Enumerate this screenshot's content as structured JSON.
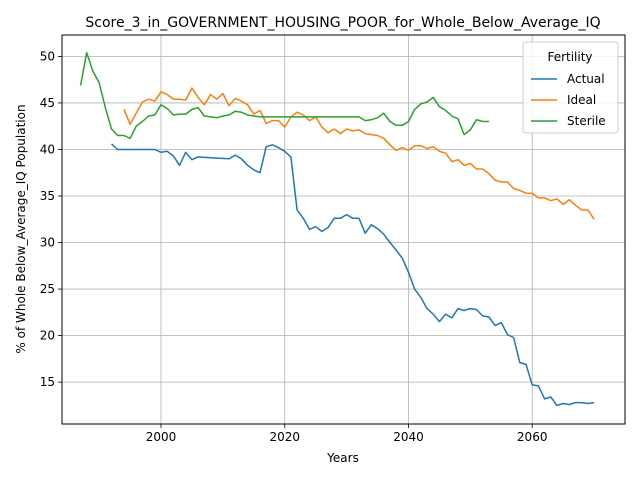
{
  "chart_data": {
    "type": "line",
    "title": "Score_3_in_GOVERNMENT_HOUSING_POOR_for_Whole_Below_Average_IQ",
    "xlabel": "Years",
    "ylabel": "% of Whole Below_Average_IQ Population",
    "xlim": [
      1984,
      2075
    ],
    "ylim": [
      10.5,
      52.3
    ],
    "xticks": [
      2000,
      2020,
      2040,
      2060
    ],
    "yticks": [
      15,
      20,
      25,
      30,
      35,
      40,
      45,
      50
    ],
    "grid": true,
    "legend": {
      "title": "Fertility",
      "position": "upper-right"
    },
    "series": [
      {
        "name": "Actual",
        "color": "#1f77b4",
        "points": [
          [
            1992,
            40.6
          ],
          [
            1993,
            40.0
          ],
          [
            1995,
            40.0
          ],
          [
            1997,
            40.0
          ],
          [
            1999,
            40.0
          ],
          [
            2000,
            39.7
          ],
          [
            2001,
            39.8
          ],
          [
            2002,
            39.3
          ],
          [
            2003,
            38.3
          ],
          [
            2004,
            39.7
          ],
          [
            2005,
            38.9
          ],
          [
            2006,
            39.2
          ],
          [
            2008,
            39.1
          ],
          [
            2011,
            39.0
          ],
          [
            2012,
            39.4
          ],
          [
            2013,
            39.0
          ],
          [
            2014,
            38.3
          ],
          [
            2015,
            37.8
          ],
          [
            2016,
            37.5
          ],
          [
            2017,
            40.3
          ],
          [
            2018,
            40.5
          ],
          [
            2019,
            40.2
          ],
          [
            2020,
            39.8
          ],
          [
            2021,
            39.2
          ],
          [
            2022,
            33.5
          ],
          [
            2023,
            32.6
          ],
          [
            2024,
            31.4
          ],
          [
            2025,
            31.7
          ],
          [
            2026,
            31.2
          ],
          [
            2027,
            31.6
          ],
          [
            2028,
            32.6
          ],
          [
            2029,
            32.6
          ],
          [
            2030,
            33.0
          ],
          [
            2031,
            32.6
          ],
          [
            2032,
            32.6
          ],
          [
            2033,
            31.0
          ],
          [
            2034,
            31.9
          ],
          [
            2035,
            31.5
          ],
          [
            2036,
            30.9
          ],
          [
            2037,
            30.0
          ],
          [
            2038,
            29.2
          ],
          [
            2039,
            28.3
          ],
          [
            2040,
            26.8
          ],
          [
            2041,
            25.0
          ],
          [
            2042,
            24.1
          ],
          [
            2043,
            22.9
          ],
          [
            2044,
            22.3
          ],
          [
            2045,
            21.5
          ],
          [
            2046,
            22.3
          ],
          [
            2047,
            21.9
          ],
          [
            2048,
            22.9
          ],
          [
            2049,
            22.7
          ],
          [
            2050,
            22.9
          ],
          [
            2051,
            22.8
          ],
          [
            2052,
            22.1
          ],
          [
            2053,
            22.0
          ],
          [
            2054,
            21.1
          ],
          [
            2055,
            21.4
          ],
          [
            2056,
            20.1
          ],
          [
            2057,
            19.8
          ],
          [
            2058,
            17.1
          ],
          [
            2059,
            16.9
          ],
          [
            2060,
            14.7
          ],
          [
            2061,
            14.6
          ],
          [
            2062,
            13.2
          ],
          [
            2063,
            13.4
          ],
          [
            2064,
            12.5
          ],
          [
            2065,
            12.7
          ],
          [
            2066,
            12.6
          ],
          [
            2067,
            12.8
          ],
          [
            2068,
            12.8
          ],
          [
            2069,
            12.7
          ],
          [
            2070,
            12.8
          ]
        ]
      },
      {
        "name": "Ideal",
        "color": "#ff7f0e",
        "points": [
          [
            1994,
            44.3
          ],
          [
            1995,
            42.7
          ],
          [
            1996,
            43.9
          ],
          [
            1997,
            45.1
          ],
          [
            1998,
            45.4
          ],
          [
            1999,
            45.2
          ],
          [
            2000,
            46.2
          ],
          [
            2001,
            45.9
          ],
          [
            2002,
            45.4
          ],
          [
            2003,
            45.4
          ],
          [
            2004,
            45.3
          ],
          [
            2005,
            46.6
          ],
          [
            2006,
            45.6
          ],
          [
            2007,
            44.8
          ],
          [
            2008,
            45.9
          ],
          [
            2009,
            45.4
          ],
          [
            2010,
            46.0
          ],
          [
            2011,
            44.7
          ],
          [
            2012,
            45.5
          ],
          [
            2013,
            45.2
          ],
          [
            2014,
            44.8
          ],
          [
            2015,
            43.8
          ],
          [
            2016,
            44.2
          ],
          [
            2017,
            42.8
          ],
          [
            2018,
            43.1
          ],
          [
            2019,
            43.1
          ],
          [
            2020,
            42.4
          ],
          [
            2021,
            43.5
          ],
          [
            2022,
            44.0
          ],
          [
            2023,
            43.7
          ],
          [
            2024,
            43.1
          ],
          [
            2025,
            43.5
          ],
          [
            2026,
            42.4
          ],
          [
            2027,
            41.8
          ],
          [
            2028,
            42.2
          ],
          [
            2029,
            41.7
          ],
          [
            2030,
            42.2
          ],
          [
            2031,
            42.0
          ],
          [
            2032,
            42.1
          ],
          [
            2033,
            41.7
          ],
          [
            2034,
            41.6
          ],
          [
            2035,
            41.5
          ],
          [
            2036,
            41.2
          ],
          [
            2037,
            40.5
          ],
          [
            2038,
            39.9
          ],
          [
            2039,
            40.2
          ],
          [
            2040,
            39.9
          ],
          [
            2041,
            40.4
          ],
          [
            2042,
            40.4
          ],
          [
            2043,
            40.1
          ],
          [
            2044,
            40.3
          ],
          [
            2045,
            39.8
          ],
          [
            2046,
            39.6
          ],
          [
            2047,
            38.7
          ],
          [
            2048,
            38.9
          ],
          [
            2049,
            38.3
          ],
          [
            2050,
            38.5
          ],
          [
            2051,
            37.9
          ],
          [
            2052,
            37.9
          ],
          [
            2053,
            37.4
          ],
          [
            2054,
            36.7
          ],
          [
            2055,
            36.5
          ],
          [
            2056,
            36.5
          ],
          [
            2057,
            35.8
          ],
          [
            2058,
            35.6
          ],
          [
            2059,
            35.3
          ],
          [
            2060,
            35.3
          ],
          [
            2061,
            34.8
          ],
          [
            2062,
            34.8
          ],
          [
            2063,
            34.5
          ],
          [
            2064,
            34.7
          ],
          [
            2065,
            34.1
          ],
          [
            2066,
            34.6
          ],
          [
            2067,
            34.0
          ],
          [
            2068,
            33.5
          ],
          [
            2069,
            33.5
          ],
          [
            2070,
            32.5
          ]
        ]
      },
      {
        "name": "Sterile",
        "color": "#2ca02c",
        "points": [
          [
            1987,
            46.9
          ],
          [
            1988,
            50.4
          ],
          [
            1989,
            48.4
          ],
          [
            1990,
            47.2
          ],
          [
            1991,
            44.5
          ],
          [
            1992,
            42.2
          ],
          [
            1993,
            41.5
          ],
          [
            1994,
            41.5
          ],
          [
            1995,
            41.2
          ],
          [
            1996,
            42.5
          ],
          [
            1997,
            43.0
          ],
          [
            1998,
            43.6
          ],
          [
            1999,
            43.7
          ],
          [
            2000,
            44.8
          ],
          [
            2001,
            44.4
          ],
          [
            2002,
            43.7
          ],
          [
            2003,
            43.8
          ],
          [
            2004,
            43.8
          ],
          [
            2005,
            44.3
          ],
          [
            2006,
            44.5
          ],
          [
            2007,
            43.6
          ],
          [
            2008,
            43.5
          ],
          [
            2009,
            43.4
          ],
          [
            2010,
            43.6
          ],
          [
            2011,
            43.7
          ],
          [
            2012,
            44.1
          ],
          [
            2013,
            44.0
          ],
          [
            2014,
            43.7
          ],
          [
            2015,
            43.6
          ],
          [
            2016,
            43.5
          ],
          [
            2020,
            43.5
          ],
          [
            2025,
            43.5
          ],
          [
            2032,
            43.5
          ],
          [
            2033,
            43.1
          ],
          [
            2034,
            43.2
          ],
          [
            2035,
            43.4
          ],
          [
            2036,
            43.9
          ],
          [
            2037,
            43.0
          ],
          [
            2038,
            42.6
          ],
          [
            2039,
            42.6
          ],
          [
            2040,
            43.0
          ],
          [
            2041,
            44.3
          ],
          [
            2042,
            44.9
          ],
          [
            2043,
            45.1
          ],
          [
            2044,
            45.6
          ],
          [
            2045,
            44.6
          ],
          [
            2046,
            44.2
          ],
          [
            2047,
            43.6
          ],
          [
            2048,
            43.3
          ],
          [
            2049,
            41.6
          ],
          [
            2050,
            42.1
          ],
          [
            2051,
            43.2
          ],
          [
            2052,
            43.0
          ],
          [
            2053,
            43.0
          ]
        ]
      }
    ]
  }
}
